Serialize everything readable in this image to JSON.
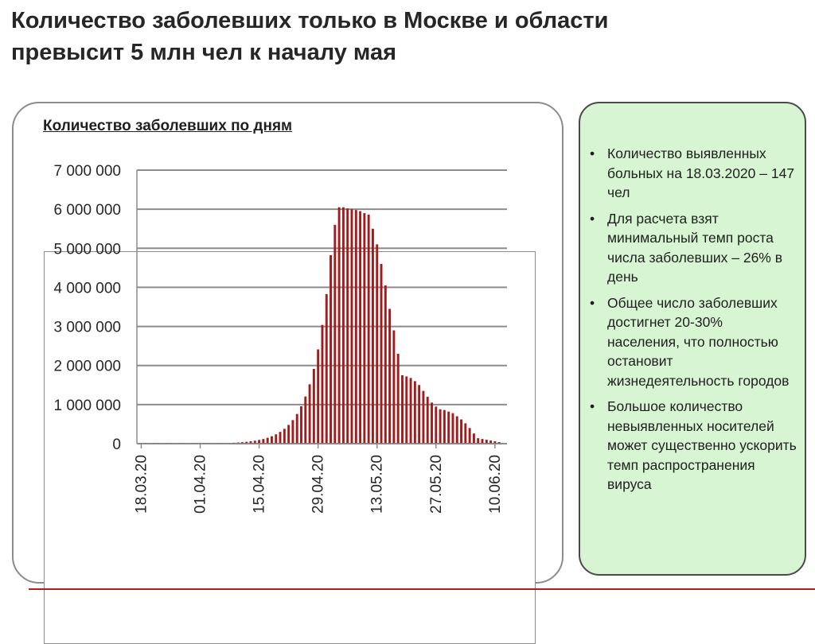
{
  "slide": {
    "title_line1": "Количество заболевших только в Москве и области",
    "title_line2": "превысит 5 млн чел к началу мая"
  },
  "chart_heading": "Количество заболевших по дням",
  "notes": [
    "Количество выявленных больных на 18.03.2020 – 147 чел",
    "Для расчета взят минимальный темп роста числа заболевших – 26% в день",
    "Общее число заболевших достигнет 20-30% населения, что полностью остановит жизнедеятельность городов",
    "Большое количество невыявленных носителей может существенно ускорить темп распространения вируса"
  ],
  "colors": {
    "bar": "#a11d1d",
    "grid": "#8c8c8c",
    "info_bg": "#d7f5d2",
    "accent_line": "#b31d1d"
  },
  "chart_data": {
    "type": "bar",
    "title": "Количество заболевших по дням",
    "xlabel": "",
    "ylabel": "",
    "ylim": [
      0,
      7000000
    ],
    "yticks": [
      0,
      1000000,
      2000000,
      3000000,
      4000000,
      5000000,
      6000000,
      7000000
    ],
    "ytick_labels": [
      "0",
      "1 000 000",
      "2 000 000",
      "3 000 000",
      "4 000 000",
      "5 000 000",
      "6 000 000",
      "7 000 000"
    ],
    "xtick_labels": [
      "18.03.20",
      "01.04.20",
      "15.04.20",
      "29.04.20",
      "13.05.20",
      "27.05.20",
      "10.06.20"
    ],
    "grid": true,
    "categories": [
      "18.03.20",
      "19.03.20",
      "20.03.20",
      "21.03.20",
      "22.03.20",
      "23.03.20",
      "24.03.20",
      "25.03.20",
      "26.03.20",
      "27.03.20",
      "28.03.20",
      "29.03.20",
      "30.03.20",
      "31.03.20",
      "01.04.20",
      "02.04.20",
      "03.04.20",
      "04.04.20",
      "05.04.20",
      "06.04.20",
      "07.04.20",
      "08.04.20",
      "09.04.20",
      "10.04.20",
      "11.04.20",
      "12.04.20",
      "13.04.20",
      "14.04.20",
      "15.04.20",
      "16.04.20",
      "17.04.20",
      "18.04.20",
      "19.04.20",
      "20.04.20",
      "21.04.20",
      "22.04.20",
      "23.04.20",
      "24.04.20",
      "25.04.20",
      "26.04.20",
      "27.04.20",
      "28.04.20",
      "29.04.20",
      "30.04.20",
      "01.05.20",
      "02.05.20",
      "03.05.20",
      "04.05.20",
      "05.05.20",
      "06.05.20",
      "07.05.20",
      "08.05.20",
      "09.05.20",
      "10.05.20",
      "11.05.20",
      "12.05.20",
      "13.05.20",
      "14.05.20",
      "15.05.20",
      "16.05.20",
      "17.05.20",
      "18.05.20",
      "19.05.20",
      "20.05.20",
      "21.05.20",
      "22.05.20",
      "23.05.20",
      "24.05.20",
      "25.05.20",
      "26.05.20",
      "27.05.20",
      "28.05.20",
      "29.05.20",
      "30.05.20",
      "31.05.20",
      "01.06.20",
      "02.06.20",
      "03.06.20",
      "04.06.20",
      "05.06.20",
      "06.06.20",
      "07.06.20",
      "08.06.20",
      "09.06.20",
      "10.06.20",
      "11.06.20"
    ],
    "values": [
      147,
      185,
      233,
      294,
      370,
      466,
      588,
      740,
      933,
      1175,
      1481,
      1866,
      2351,
      2962,
      3732,
      4703,
      5925,
      7466,
      9407,
      11853,
      14935,
      18818,
      23710,
      29875,
      37642,
      47429,
      59761,
      75298,
      94876,
      119543,
      150624,
      189787,
      239131,
      301305,
      379645,
      478353,
      602725,
      759434,
      956887,
      1205677,
      1519153,
      1914133,
      2411808,
      3038878,
      3829007,
      4824548,
      5600000,
      6050000,
      6050000,
      6020000,
      6000000,
      5980000,
      5950000,
      5900000,
      5860000,
      5500000,
      5100000,
      4600000,
      4050000,
      3450000,
      2900000,
      2300000,
      1750000,
      1720000,
      1680000,
      1600000,
      1500000,
      1350000,
      1200000,
      1050000,
      950000,
      880000,
      860000,
      820000,
      780000,
      700000,
      620000,
      520000,
      400000,
      260000,
      140000,
      120000,
      100000,
      80000,
      60000,
      40000
    ]
  }
}
